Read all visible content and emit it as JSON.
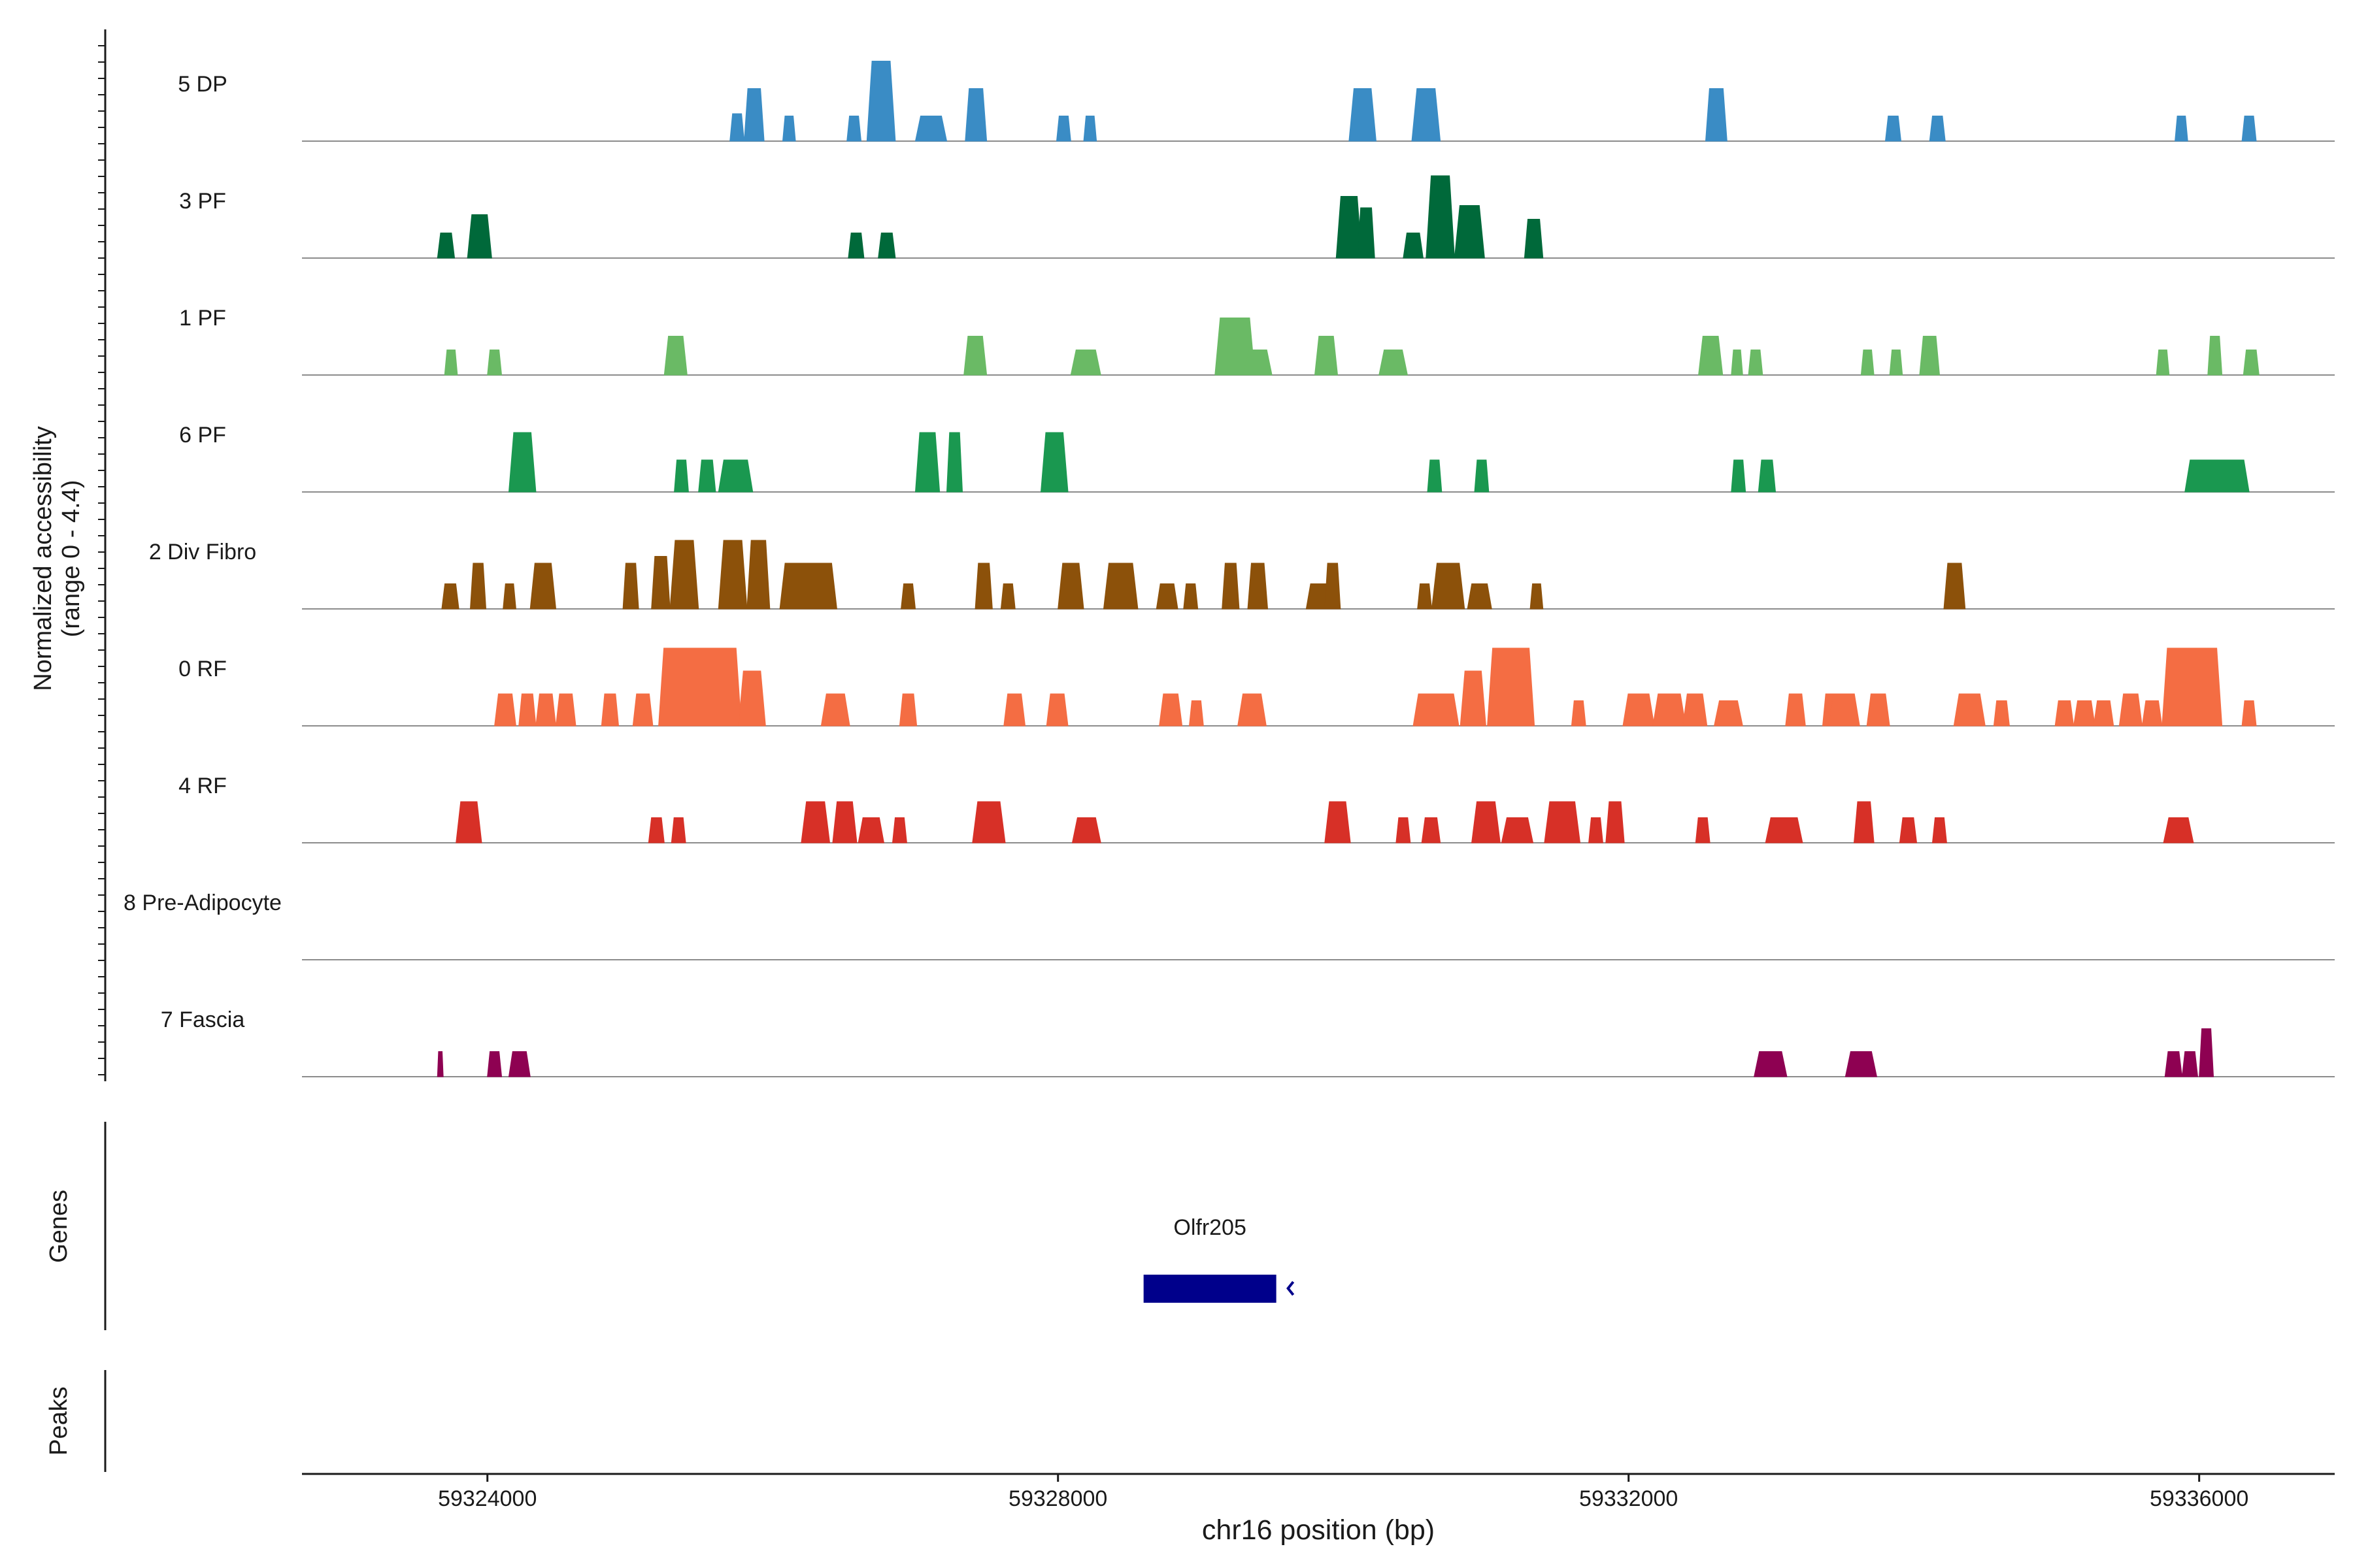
{
  "chart_data": {
    "type": "area",
    "title": "",
    "xlabel": "chr16 position (bp)",
    "ylabel": "Normalized accessibility",
    "ylabel_range": "(range 0 - 4.4)",
    "ylim": [
      0,
      4.4
    ],
    "xlim": [
      59322700,
      59336950
    ],
    "x_ticks": [
      59324000,
      59328000,
      59332000,
      59336000
    ],
    "x_tick_labels": [
      "59324000",
      "59328000",
      "59332000",
      "59336000"
    ],
    "grid": false,
    "tracks": [
      {
        "name": "5 DP",
        "label": "5 DP",
        "color": "#3a8cc5",
        "peaks": [
          [
            59325700,
            59325800,
            1.2
          ],
          [
            59325800,
            59325940,
            2.3
          ],
          [
            59326070,
            59326160,
            1.1
          ],
          [
            59326520,
            59326620,
            1.1
          ],
          [
            59326660,
            59326860,
            3.5
          ],
          [
            59327000,
            59327220,
            1.1
          ],
          [
            59327350,
            59327500,
            2.3
          ],
          [
            59327990,
            59328090,
            1.1
          ],
          [
            59328180,
            59328270,
            1.1
          ],
          [
            59330040,
            59330230,
            2.3
          ],
          [
            59330480,
            59330680,
            2.3
          ],
          [
            59332540,
            59332690,
            2.3
          ],
          [
            59333800,
            59333910,
            1.1
          ],
          [
            59334110,
            59334220,
            1.1
          ],
          [
            59335830,
            59335920,
            1.1
          ],
          [
            59336300,
            59336400,
            1.1
          ]
        ]
      },
      {
        "name": "3 PF",
        "label": "3 PF",
        "color": "#00693a",
        "peaks": [
          [
            59323650,
            59323770,
            1.1
          ],
          [
            59323860,
            59324030,
            1.9
          ],
          [
            59326530,
            59326640,
            1.1
          ],
          [
            59326740,
            59326860,
            1.1
          ],
          [
            59329950,
            59330130,
            2.7
          ],
          [
            59330100,
            59330220,
            2.2
          ],
          [
            59330420,
            59330560,
            1.1
          ],
          [
            59330580,
            59330780,
            3.6
          ],
          [
            59330780,
            59330990,
            2.3
          ],
          [
            59331270,
            59331400,
            1.7
          ]
        ]
      },
      {
        "name": "1 PF",
        "label": "1 PF",
        "color": "#6aba65",
        "peaks": [
          [
            59323700,
            59323790,
            1.1
          ],
          [
            59324000,
            59324100,
            1.1
          ],
          [
            59325240,
            59325400,
            1.7
          ],
          [
            59327340,
            59327500,
            1.7
          ],
          [
            59328090,
            59328300,
            1.1
          ],
          [
            59329100,
            59329380,
            2.5
          ],
          [
            59329300,
            59329500,
            1.1
          ],
          [
            59329800,
            59329960,
            1.7
          ],
          [
            59330250,
            59330450,
            1.1
          ],
          [
            59332490,
            59332660,
            1.7
          ],
          [
            59332720,
            59332800,
            1.1
          ],
          [
            59332840,
            59332940,
            1.1
          ],
          [
            59333630,
            59333720,
            1.1
          ],
          [
            59333830,
            59333920,
            1.1
          ],
          [
            59334040,
            59334180,
            1.7
          ],
          [
            59335700,
            59335790,
            1.1
          ],
          [
            59336060,
            59336160,
            1.7
          ],
          [
            59336310,
            59336420,
            1.1
          ]
        ]
      },
      {
        "name": "6 PF",
        "label": "6 PF",
        "color": "#1a9850",
        "peaks": [
          [
            59324150,
            59324340,
            2.6
          ],
          [
            59325310,
            59325410,
            1.4
          ],
          [
            59325480,
            59325600,
            1.4
          ],
          [
            59325620,
            59325860,
            1.4
          ],
          [
            59327000,
            59327170,
            2.6
          ],
          [
            59327220,
            59327330,
            2.6
          ],
          [
            59327880,
            59328070,
            2.6
          ],
          [
            59330590,
            59330690,
            1.4
          ],
          [
            59330920,
            59331020,
            1.4
          ],
          [
            59332720,
            59332820,
            1.4
          ],
          [
            59332910,
            59333030,
            1.4
          ],
          [
            59335900,
            59336350,
            1.4
          ]
        ]
      },
      {
        "name": "2 Div Fibro",
        "label": "2 Div Fibro",
        "color": "#8c510a",
        "peaks": [
          [
            59323680,
            59323800,
            1.1
          ],
          [
            59323880,
            59323990,
            2.0
          ],
          [
            59324110,
            59324200,
            1.1
          ],
          [
            59324300,
            59324480,
            2.0
          ],
          [
            59324950,
            59325060,
            2.0
          ],
          [
            59325150,
            59325280,
            2.3
          ],
          [
            59325280,
            59325480,
            3.0
          ],
          [
            59325620,
            59325820,
            3.0
          ],
          [
            59325820,
            59325980,
            3.0
          ],
          [
            59326050,
            59326450,
            2.0
          ],
          [
            59326900,
            59327000,
            1.1
          ],
          [
            59327420,
            59327540,
            2.0
          ],
          [
            59327600,
            59327700,
            1.1
          ],
          [
            59328000,
            59328180,
            2.0
          ],
          [
            59328320,
            59328560,
            2.0
          ],
          [
            59328690,
            59328840,
            1.1
          ],
          [
            59328880,
            59328980,
            1.1
          ],
          [
            59329150,
            59329270,
            2.0
          ],
          [
            59329330,
            59329470,
            2.0
          ],
          [
            59329740,
            59329910,
            1.1
          ],
          [
            59329870,
            59329980,
            2.0
          ],
          [
            59330520,
            59330620,
            1.1
          ],
          [
            59330620,
            59330850,
            2.0
          ],
          [
            59330870,
            59331040,
            1.1
          ],
          [
            59331310,
            59331400,
            1.1
          ],
          [
            59334210,
            59334360,
            2.0
          ]
        ]
      },
      {
        "name": "0 RF",
        "label": "0 RF",
        "color": "#f46d43",
        "peaks": [
          [
            59324050,
            59324200,
            1.4
          ],
          [
            59324220,
            59324340,
            1.4
          ],
          [
            59324340,
            59324480,
            1.4
          ],
          [
            59324480,
            59324620,
            1.4
          ],
          [
            59324800,
            59324920,
            1.4
          ],
          [
            59325020,
            59325160,
            1.4
          ],
          [
            59325200,
            59325780,
            3.4
          ],
          [
            59325760,
            59325950,
            2.4
          ],
          [
            59326340,
            59326540,
            1.4
          ],
          [
            59326890,
            59327010,
            1.4
          ],
          [
            59327620,
            59327770,
            1.4
          ],
          [
            59327920,
            59328070,
            1.4
          ],
          [
            59328710,
            59328870,
            1.4
          ],
          [
            59328920,
            59329020,
            1.1
          ],
          [
            59329260,
            59329460,
            1.4
          ],
          [
            59330490,
            59330810,
            1.4
          ],
          [
            59330820,
            59331000,
            2.4
          ],
          [
            59331010,
            59331340,
            3.4
          ],
          [
            59331600,
            59331700,
            1.1
          ],
          [
            59331960,
            59332180,
            1.4
          ],
          [
            59332170,
            59332400,
            1.4
          ],
          [
            59332380,
            59332550,
            1.4
          ],
          [
            59332600,
            59332800,
            1.1
          ],
          [
            59333100,
            59333240,
            1.4
          ],
          [
            59333360,
            59333480,
            1.4
          ],
          [
            59333400,
            59333620,
            1.4
          ],
          [
            59333670,
            59333830,
            1.4
          ],
          [
            59334280,
            59334500,
            1.4
          ],
          [
            59334560,
            59334670,
            1.1
          ],
          [
            59334990,
            59335120,
            1.1
          ],
          [
            59335120,
            59335270,
            1.1
          ],
          [
            59335260,
            59335400,
            1.1
          ],
          [
            59335440,
            59335600,
            1.4
          ],
          [
            59335600,
            59335740,
            1.1
          ],
          [
            59335740,
            59336160,
            3.4
          ],
          [
            59336300,
            59336400,
            1.1
          ]
        ]
      },
      {
        "name": "4 RF",
        "label": "4 RF",
        "color": "#d73027",
        "peaks": [
          [
            59323780,
            59323960,
            1.8
          ],
          [
            59325130,
            59325240,
            1.1
          ],
          [
            59325290,
            59325390,
            1.1
          ],
          [
            59326200,
            59326400,
            1.8
          ],
          [
            59326420,
            59326590,
            1.8
          ],
          [
            59326600,
            59326780,
            1.1
          ],
          [
            59326840,
            59326940,
            1.1
          ],
          [
            59327400,
            59327630,
            1.8
          ],
          [
            59328100,
            59328300,
            1.1
          ],
          [
            59329870,
            59330050,
            1.8
          ],
          [
            59330370,
            59330470,
            1.1
          ],
          [
            59330550,
            59330680,
            1.1
          ],
          [
            59330900,
            59331100,
            1.8
          ],
          [
            59331110,
            59331330,
            1.1
          ],
          [
            59331410,
            59331660,
            1.8
          ],
          [
            59331720,
            59331820,
            1.1
          ],
          [
            59331840,
            59331970,
            1.8
          ],
          [
            59332470,
            59332570,
            1.1
          ],
          [
            59332960,
            59333220,
            1.1
          ],
          [
            59333580,
            59333720,
            1.8
          ],
          [
            59333900,
            59334020,
            1.1
          ],
          [
            59334130,
            59334230,
            1.1
          ],
          [
            59335750,
            59335960,
            1.1
          ]
        ]
      },
      {
        "name": "8 Pre-Adipocyte",
        "label": "8 Pre-Adipocyte",
        "color": "#ba5a84",
        "peaks": []
      },
      {
        "name": "7 Fascia",
        "label": "7 Fascia",
        "color": "#8e0152",
        "peaks": [
          [
            59323650,
            59323690,
            1.1
          ],
          [
            59324000,
            59324100,
            1.1
          ],
          [
            59324150,
            59324300,
            1.1
          ],
          [
            59332880,
            59333110,
            1.1
          ],
          [
            59333520,
            59333740,
            1.1
          ],
          [
            59335760,
            59335880,
            1.1
          ],
          [
            59335880,
            59335990,
            1.1
          ],
          [
            59336000,
            59336100,
            2.1
          ]
        ]
      }
    ],
    "genes": [
      {
        "name": "Olfr205",
        "start": 59328600,
        "end": 59329530,
        "strand": "-",
        "color": "#00008b"
      }
    ],
    "panels": {
      "genes": "Genes",
      "peaks": "Peaks"
    },
    "peaks": []
  }
}
